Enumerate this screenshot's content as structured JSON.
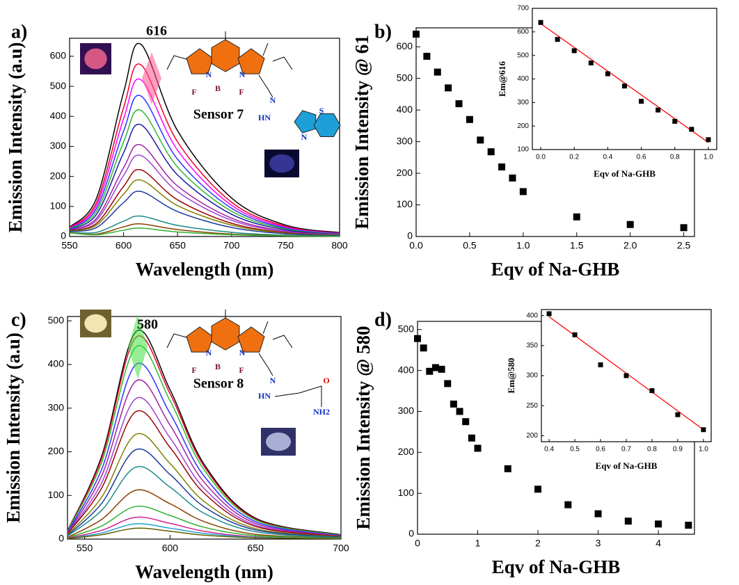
{
  "chart_data": [
    {
      "type": "line",
      "panel_label": "a)",
      "peak_label": "616",
      "sensor_label": "Sensor 7",
      "structure_labels": [
        "N",
        "N",
        "F",
        "B",
        "F",
        "N",
        "HN",
        "S",
        "N"
      ],
      "x_label": "Wavelength (nm)",
      "y_label": "Emission Intensity (a.u)",
      "xlim": [
        550,
        800
      ],
      "xticks": [
        550,
        600,
        650,
        700,
        750,
        800
      ],
      "ylim": [
        0,
        660
      ],
      "yticks": [
        0,
        100,
        200,
        300,
        400,
        500,
        600
      ],
      "x": [
        550,
        575,
        600,
        616,
        650,
        700,
        750,
        800
      ],
      "series": [
        {
          "color": "#000000",
          "values": [
            31,
            128,
            480,
            640,
            352,
            128,
            38,
            13
          ]
        },
        {
          "color": "#e8002a",
          "values": [
            29,
            114,
            429,
            572,
            315,
            114,
            34,
            11
          ]
        },
        {
          "color": "#ff00ff",
          "values": [
            28,
            104,
            392,
            522,
            287,
            104,
            31,
            10
          ]
        },
        {
          "color": "#3030ff",
          "values": [
            26,
            94,
            351,
            468,
            257,
            94,
            28,
            9
          ]
        },
        {
          "color": "#2db82d",
          "values": [
            25,
            84,
            315,
            420,
            231,
            84,
            25,
            8
          ]
        },
        {
          "color": "#1a1aa0",
          "values": [
            23,
            74,
            279,
            372,
            205,
            74,
            22,
            7
          ]
        },
        {
          "color": "#a020a0",
          "values": [
            21,
            61,
            229,
            305,
            168,
            61,
            18,
            6
          ]
        },
        {
          "color": "#a040d0",
          "values": [
            20,
            54,
            203,
            270,
            149,
            54,
            16,
            5
          ]
        },
        {
          "color": "#990000",
          "values": [
            19,
            44,
            167,
            222,
            122,
            44,
            13,
            4
          ]
        },
        {
          "color": "#808000",
          "values": [
            18,
            38,
            141,
            188,
            103,
            38,
            11,
            4
          ]
        },
        {
          "color": "#1a3a9a",
          "values": [
            17,
            30,
            113,
            150,
            83,
            30,
            9,
            3
          ]
        },
        {
          "color": "#1a8a8a",
          "values": [
            14,
            14,
            51,
            68,
            37,
            14,
            4,
            1
          ]
        },
        {
          "color": "#8a4000",
          "values": [
            13,
            8,
            32,
            42,
            23,
            8,
            3,
            1
          ]
        },
        {
          "color": "#30b030",
          "values": [
            12,
            6,
            21,
            28,
            15,
            6,
            2,
            1
          ]
        }
      ]
    },
    {
      "type": "scatter",
      "panel_label": "b)",
      "color": "#000000",
      "x_label": "Eqv of Na-GHB",
      "y_label": "Emission Intensity @ 61",
      "xlim": [
        0,
        2.6
      ],
      "xticks": [
        {
          "value": 0,
          "label": "0.0"
        },
        {
          "value": 0.5,
          "label": "0.5"
        },
        {
          "value": 1,
          "label": "1.0"
        },
        {
          "value": 1.5,
          "label": "1.5"
        },
        {
          "value": 2,
          "label": "2.0"
        },
        {
          "value": 2.5,
          "label": "2.5"
        }
      ],
      "ylim": [
        0,
        660
      ],
      "yticks": [
        0,
        100,
        200,
        300,
        400,
        500,
        600
      ],
      "x": [
        0,
        0.1,
        0.2,
        0.3,
        0.4,
        0.5,
        0.6,
        0.7,
        0.8,
        0.9,
        1.0,
        1.5,
        2.0,
        2.5
      ],
      "values": [
        640,
        570,
        520,
        470,
        420,
        370,
        305,
        268,
        220,
        185,
        142,
        62,
        38,
        28
      ],
      "inset": {
        "type": "scatter",
        "color": "#000000",
        "x_label": "Eqv of Na-GHB",
        "y_label": "Em@616",
        "xlim": [
          -0.05,
          1.05
        ],
        "xticks": [
          {
            "value": 0,
            "label": "0.0"
          },
          {
            "value": 0.2,
            "label": "0.2"
          },
          {
            "value": 0.4,
            "label": "0.4"
          },
          {
            "value": 0.6,
            "label": "0.6"
          },
          {
            "value": 0.8,
            "label": "0.8"
          },
          {
            "value": 1,
            "label": "1.0"
          }
        ],
        "ylim": [
          100,
          700
        ],
        "yticks": [
          100,
          200,
          300,
          400,
          500,
          600,
          700
        ],
        "x": [
          0,
          0.1,
          0.2,
          0.3,
          0.4,
          0.5,
          0.6,
          0.7,
          0.8,
          0.9,
          1.0
        ],
        "values": [
          640,
          568,
          520,
          468,
          422,
          370,
          305,
          268,
          220,
          186,
          142
        ],
        "fit": {
          "color": "#ff0000",
          "x": [
            0,
            1
          ],
          "values": [
            635,
            130
          ]
        }
      }
    },
    {
      "type": "line",
      "panel_label": "c)",
      "peak_label": "580",
      "sensor_label": "Sensor 8",
      "structure_labels": [
        "N",
        "N",
        "F",
        "B",
        "F",
        "N",
        "HN",
        "O",
        "NH2"
      ],
      "x_label": "Wavelength (nm)",
      "y_label": "Emission Intensity (a.u)",
      "xlim": [
        540,
        700
      ],
      "xticks": [
        550,
        600,
        650,
        700
      ],
      "ylim": [
        0,
        510
      ],
      "yticks": [
        0,
        100,
        200,
        300,
        400,
        500
      ],
      "x": [
        540,
        560,
        580,
        600,
        620,
        650,
        700
      ],
      "series": [
        {
          "color": "#000000",
          "values": [
            19,
            190,
            475,
            342,
            171,
            48,
            10
          ]
        },
        {
          "color": "#e8002a",
          "values": [
            18,
            185,
            462,
            333,
            166,
            46,
            9
          ]
        },
        {
          "color": "#2db82d",
          "values": [
            18,
            176,
            440,
            317,
            158,
            44,
            9
          ]
        },
        {
          "color": "#3030ff",
          "values": [
            16,
            160,
            400,
            288,
            144,
            40,
            8
          ]
        },
        {
          "color": "#a020a0",
          "values": [
            14,
            145,
            362,
            261,
            130,
            36,
            7
          ]
        },
        {
          "color": "#a040d0",
          "values": [
            13,
            129,
            322,
            232,
            116,
            32,
            6
          ]
        },
        {
          "color": "#990000",
          "values": [
            12,
            117,
            292,
            210,
            105,
            29,
            6
          ]
        },
        {
          "color": "#808000",
          "values": [
            10,
            96,
            240,
            173,
            86,
            24,
            5
          ]
        },
        {
          "color": "#1a3a9a",
          "values": [
            8,
            82,
            205,
            148,
            74,
            21,
            4
          ]
        },
        {
          "color": "#1a8a8a",
          "values": [
            7,
            66,
            165,
            119,
            59,
            17,
            3
          ]
        },
        {
          "color": "#8a4000",
          "values": [
            4,
            45,
            112,
            81,
            40,
            11,
            2
          ]
        },
        {
          "color": "#30b030",
          "values": [
            3,
            30,
            75,
            54,
            27,
            8,
            2
          ]
        },
        {
          "color": "#d02090",
          "values": [
            2,
            20,
            50,
            36,
            18,
            5,
            1
          ]
        },
        {
          "color": "#20a0d0",
          "values": [
            1,
            14,
            35,
            25,
            13,
            4,
            1
          ]
        },
        {
          "color": "#606000",
          "values": [
            1,
            10,
            25,
            18,
            9,
            3,
            1
          ]
        }
      ]
    },
    {
      "type": "scatter",
      "panel_label": "d)",
      "color": "#000000",
      "x_label": "Eqv of Na-GHB",
      "y_label": "Emission Intensity @ 580",
      "xlim": [
        0,
        4.6
      ],
      "xticks": [
        0,
        1,
        2,
        3,
        4
      ],
      "ylim": [
        0,
        520
      ],
      "yticks": [
        0,
        100,
        200,
        300,
        400,
        500
      ],
      "x": [
        0,
        0.1,
        0.2,
        0.3,
        0.4,
        0.5,
        0.6,
        0.7,
        0.8,
        0.9,
        1.0,
        1.5,
        2.0,
        2.5,
        3.0,
        3.5,
        4.0,
        4.5
      ],
      "values": [
        478,
        455,
        398,
        407,
        403,
        368,
        318,
        300,
        275,
        235,
        210,
        160,
        110,
        72,
        50,
        32,
        25,
        22
      ],
      "inset": {
        "type": "scatter",
        "color": "#000000",
        "x_label": "Eqv of Na-GHB",
        "y_label": "Em@580",
        "xlim": [
          0.37,
          1.03
        ],
        "xticks": [
          {
            "value": 0.4,
            "label": "0.4"
          },
          {
            "value": 0.5,
            "label": "0.5"
          },
          {
            "value": 0.6,
            "label": "0.6"
          },
          {
            "value": 0.7,
            "label": "0.7"
          },
          {
            "value": 0.8,
            "label": "0.8"
          },
          {
            "value": 0.9,
            "label": "0.9"
          },
          {
            "value": 1,
            "label": "1.0"
          }
        ],
        "ylim": [
          190,
          410
        ],
        "yticks": [
          200,
          250,
          300,
          350,
          400
        ],
        "x": [
          0.4,
          0.5,
          0.6,
          0.7,
          0.8,
          0.9,
          1.0
        ],
        "values": [
          403,
          368,
          318,
          300,
          275,
          235,
          210
        ],
        "fit": {
          "color": "#ff0000",
          "x": [
            0.4,
            1.0
          ],
          "values": [
            398,
            210
          ]
        }
      }
    }
  ]
}
